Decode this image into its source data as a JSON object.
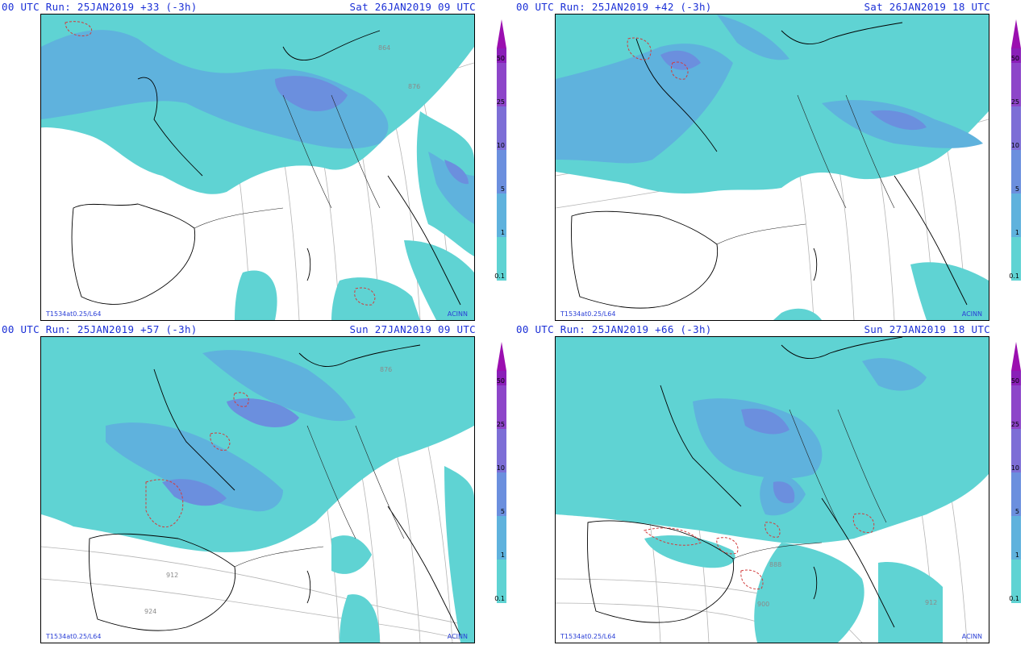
{
  "panels": [
    {
      "run_label": "00 UTC Run: 25JAN2019 +33 (-3h)",
      "valid_label": "Sat 26JAN2019 09 UTC",
      "model_label": "T1534at0.25/L64",
      "credit": "ACINN",
      "contour_labels": [
        "876",
        "864"
      ]
    },
    {
      "run_label": "00 UTC Run: 25JAN2019 +42 (-3h)",
      "valid_label": "Sat 26JAN2019 18 UTC",
      "model_label": "T1534at0.25/L64",
      "credit": "ACINN",
      "contour_labels": []
    },
    {
      "run_label": "00 UTC Run: 25JAN2019 +57 (-3h)",
      "valid_label": "Sun 27JAN2019 09 UTC",
      "model_label": "T1534at0.25/L64",
      "credit": "ACINN",
      "contour_labels": [
        "876",
        "912",
        "924"
      ]
    },
    {
      "run_label": "00 UTC Run: 25JAN2019 +66 (-3h)",
      "valid_label": "Sun 27JAN2019 18 UTC",
      "model_label": "T1534at0.25/L64",
      "credit": "ACINN",
      "contour_labels": [
        "888",
        "900",
        "912"
      ]
    }
  ],
  "colorbar": {
    "tick_labels": [
      "50",
      "25",
      "10",
      "5",
      "1",
      "0.1"
    ],
    "colors": {
      "tip": "#9b0fb0",
      "above_50": "#8a1fb8",
      "25_50": "#8d45c9",
      "10_25": "#7d6ed6",
      "5_10": "#6b8fde",
      "1_5": "#5fb2dd",
      "0.1_1": "#5fd3d3"
    }
  }
}
